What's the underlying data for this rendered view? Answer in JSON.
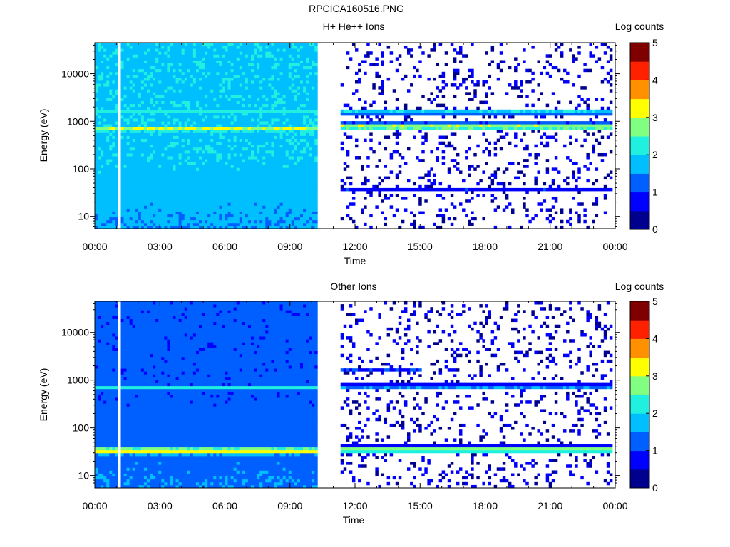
{
  "file_title": "RPCICA160516.PNG",
  "colors": {
    "colormap": [
      "#00008f",
      "#0000ff",
      "#0060ff",
      "#00bfff",
      "#20f0e0",
      "#80ff80",
      "#ffff00",
      "#ff9000",
      "#ff2000",
      "#800000"
    ],
    "background": "#ffffff"
  },
  "chart_data": [
    {
      "type": "heatmap",
      "title": "H+ He++ Ions",
      "xlabel": "Time",
      "ylabel": "Energy (eV)",
      "x_ticks": [
        "00:00",
        "03:00",
        "06:00",
        "09:00",
        "12:00",
        "15:00",
        "18:00",
        "21:00",
        "00:00"
      ],
      "x_range_hours": [
        0,
        24
      ],
      "y_ticks": [
        "10",
        "100",
        "1000",
        "10000"
      ],
      "y_scale": "log",
      "y_range_eV": [
        5.5,
        45000
      ],
      "colorbar": {
        "label": "Log counts",
        "range": [
          0,
          5
        ],
        "ticks": [
          "0",
          "1",
          "2",
          "3",
          "4",
          "5"
        ]
      },
      "data_gaps_hours": [
        [
          0.55,
          0.6
        ],
        [
          1.05,
          1.25
        ],
        [
          10.25,
          11.4
        ]
      ],
      "dense_period_hours": [
        0,
        10.25
      ],
      "sparse_period_hours": [
        11.4,
        23.9
      ],
      "bands": [
        {
          "energy_eV": 700,
          "start_h": 0.0,
          "end_h": 10.25,
          "log_counts": 3.0
        },
        {
          "energy_eV": 1600,
          "start_h": 0.0,
          "end_h": 10.25,
          "log_counts": 2.3
        },
        {
          "energy_eV": 1600,
          "start_h": 11.4,
          "end_h": 23.9,
          "log_counts": 2.0
        },
        {
          "energy_eV": 780,
          "start_h": 11.4,
          "end_h": 23.9,
          "log_counts": 3.0
        },
        {
          "energy_eV": 35,
          "start_h": 11.4,
          "end_h": 23.9,
          "log_counts": 1.0
        }
      ]
    },
    {
      "type": "heatmap",
      "title": "Other Ions",
      "xlabel": "Time",
      "ylabel": "Energy (eV)",
      "x_ticks": [
        "00:00",
        "03:00",
        "06:00",
        "09:00",
        "12:00",
        "15:00",
        "18:00",
        "21:00",
        "00:00"
      ],
      "x_range_hours": [
        0,
        24
      ],
      "y_ticks": [
        "10",
        "100",
        "1000",
        "10000"
      ],
      "y_scale": "log",
      "y_range_eV": [
        5.5,
        45000
      ],
      "colorbar": {
        "label": "Log counts",
        "range": [
          0,
          5
        ],
        "ticks": [
          "0",
          "1",
          "2",
          "3",
          "4",
          "5"
        ]
      },
      "data_gaps_hours": [
        [
          0.55,
          0.6
        ],
        [
          1.05,
          1.25
        ],
        [
          10.25,
          11.4
        ]
      ],
      "dense_period_hours": [
        0,
        10.25
      ],
      "sparse_period_hours": [
        11.4,
        23.9
      ],
      "bands": [
        {
          "energy_eV": 33,
          "start_h": 0.0,
          "end_h": 10.25,
          "log_counts": 3.2
        },
        {
          "energy_eV": 700,
          "start_h": 0.0,
          "end_h": 10.25,
          "log_counts": 2.2
        },
        {
          "energy_eV": 35,
          "start_h": 11.4,
          "end_h": 23.9,
          "log_counts": 2.8
        },
        {
          "energy_eV": 730,
          "start_h": 11.4,
          "end_h": 23.9,
          "log_counts": 1.5
        },
        {
          "energy_eV": 1600,
          "start_h": 11.4,
          "end_h": 15.0,
          "log_counts": 1.0
        }
      ]
    }
  ]
}
